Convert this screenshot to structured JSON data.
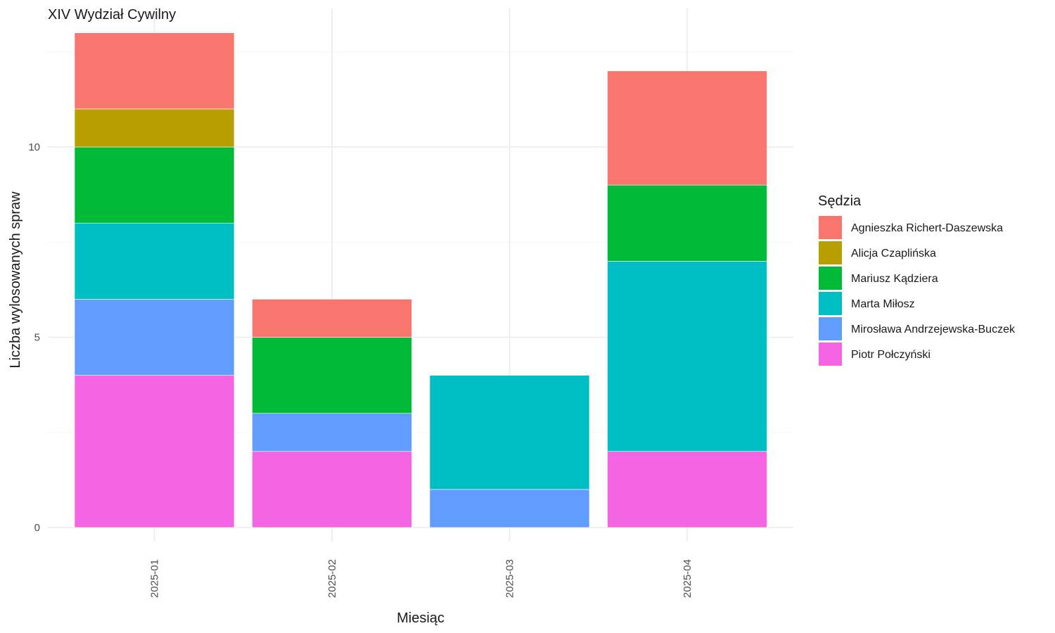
{
  "chart_data": {
    "type": "bar",
    "stacked": true,
    "title": "XIV Wydział Cywilny",
    "xlabel": "Miesiąc",
    "ylabel": "Liczba wylosowanych spraw",
    "categories": [
      "2025-01",
      "2025-02",
      "2025-03",
      "2025-04"
    ],
    "ylim": [
      0,
      13
    ],
    "yticks": [
      0,
      5,
      10
    ],
    "grid": true,
    "legend": {
      "title": "Sędzia",
      "position": "right"
    },
    "series": [
      {
        "name": "Agnieszka Richert-Daszewska",
        "color": "#F8766D",
        "values": [
          2,
          1,
          0,
          3
        ]
      },
      {
        "name": "Alicja Czaplińska",
        "color": "#B79F00",
        "values": [
          1,
          0,
          0,
          0
        ]
      },
      {
        "name": "Mariusz Kądziera",
        "color": "#00BA38",
        "values": [
          2,
          2,
          0,
          2
        ]
      },
      {
        "name": "Marta Miłosz",
        "color": "#00BFC4",
        "values": [
          2,
          0,
          3,
          5
        ]
      },
      {
        "name": "Mirosława Andrzejewska-Buczek",
        "color": "#619CFF",
        "values": [
          2,
          1,
          1,
          0
        ]
      },
      {
        "name": "Piotr Połczyński",
        "color": "#F564E3",
        "values": [
          4,
          2,
          0,
          2
        ]
      }
    ]
  }
}
